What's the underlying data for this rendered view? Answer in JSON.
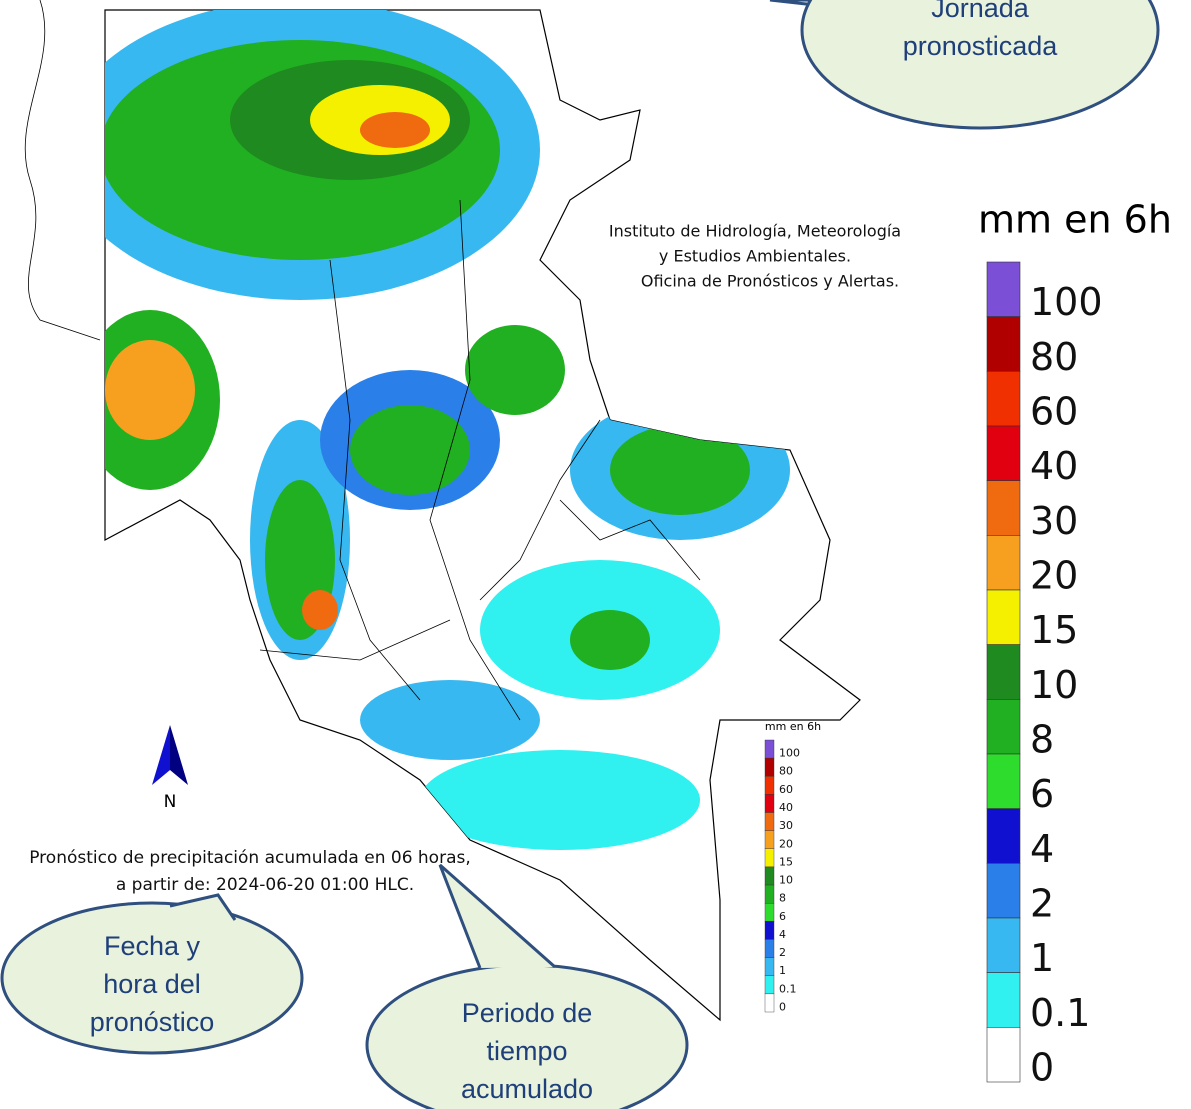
{
  "institution": [
    "Instituto de Hidrología, Meteorología",
    "y Estudios Ambientales.",
    "Oficina de Pronósticos y Alertas."
  ],
  "legend": {
    "title": "mm en 6h",
    "labels": [
      100,
      80,
      60,
      40,
      30,
      20,
      15,
      10,
      8,
      6,
      4,
      2,
      1,
      0.1,
      0
    ],
    "colors": [
      "#7b4fd6",
      "#b00000",
      "#f03000",
      "#e00010",
      "#f06a10",
      "#f7a020",
      "#f5f000",
      "#1f8a1f",
      "#21b021",
      "#2ddc2d",
      "#1010d0",
      "#2a80e8",
      "#38b8f0",
      "#30f0f0",
      "#ffffff"
    ]
  },
  "north_label": "N",
  "caption": [
    "Pronóstico de precipitación acumulada en 06 horas,",
    "a partir de: 2024-06-20 01:00 HLC."
  ],
  "callouts": [
    {
      "lines": [
        "Jornada",
        "pronosticada"
      ]
    },
    {
      "lines": [
        "Fecha y",
        "hora del",
        "pronóstico"
      ]
    },
    {
      "lines": [
        "Periodo de",
        "tiempo",
        "acumulado"
      ]
    }
  ]
}
